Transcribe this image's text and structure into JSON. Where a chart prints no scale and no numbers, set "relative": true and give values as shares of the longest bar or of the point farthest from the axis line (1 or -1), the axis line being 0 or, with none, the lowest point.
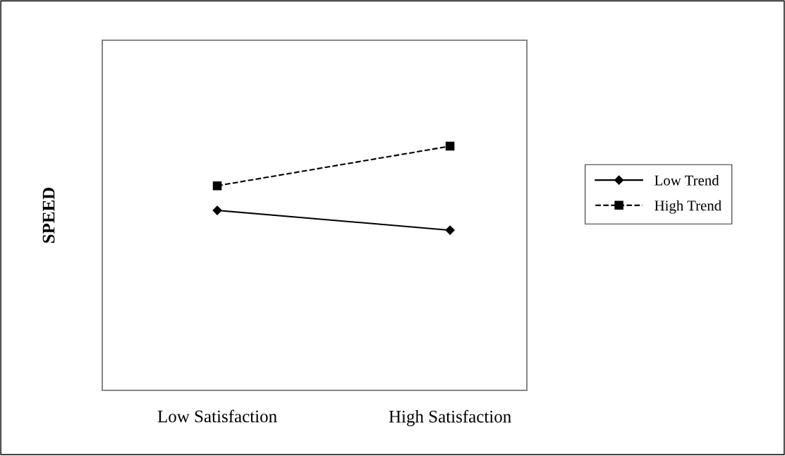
{
  "chart_data": {
    "type": "line",
    "ylabel": "SPEED",
    "relative": true,
    "categories": [
      "Low Satisfaction",
      "High Satisfaction"
    ],
    "series": [
      {
        "name": "Low Trend",
        "color": "#000000",
        "values": [
          0.737,
          0.656
        ],
        "marker": "diamond",
        "line_style": "solid"
      },
      {
        "name": "High Trend",
        "color": "#000000",
        "values": [
          0.838,
          1.0
        ],
        "marker": "square",
        "line_style": "dashed"
      }
    ],
    "legend": "right",
    "grid": false
  }
}
